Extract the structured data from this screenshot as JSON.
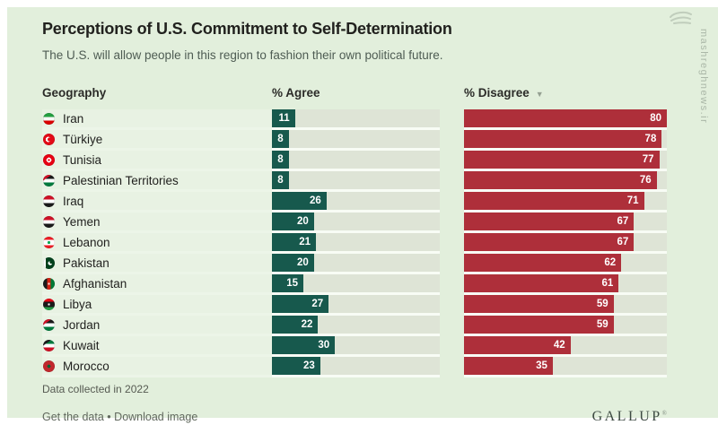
{
  "page": {
    "title": "Perceptions of U.S. Commitment to Self-Determination",
    "subtitle": "The U.S. will allow people in this region to fashion their own political future.",
    "background_color": "#e2efdc"
  },
  "table": {
    "headers": {
      "geography": "Geography",
      "agree": "% Agree",
      "disagree": "% Disagree"
    },
    "sort_icon_glyph": "▼",
    "sorted_by": "% Disagree descending",
    "rows": [
      {
        "country": "Iran",
        "flag": "iran",
        "agree": 11,
        "disagree": 80
      },
      {
        "country": "Türkiye",
        "flag": "turkiye",
        "agree": 8,
        "disagree": 78
      },
      {
        "country": "Tunisia",
        "flag": "tunisia",
        "agree": 8,
        "disagree": 77
      },
      {
        "country": "Palestinian Territories",
        "flag": "palestinian-territories",
        "agree": 8,
        "disagree": 76
      },
      {
        "country": "Iraq",
        "flag": "iraq",
        "agree": 26,
        "disagree": 71
      },
      {
        "country": "Yemen",
        "flag": "yemen",
        "agree": 20,
        "disagree": 67
      },
      {
        "country": "Lebanon",
        "flag": "lebanon",
        "agree": 21,
        "disagree": 67
      },
      {
        "country": "Pakistan",
        "flag": "pakistan",
        "agree": 20,
        "disagree": 62
      },
      {
        "country": "Afghanistan",
        "flag": "afghanistan",
        "agree": 15,
        "disagree": 61
      },
      {
        "country": "Libya",
        "flag": "libya",
        "agree": 27,
        "disagree": 59
      },
      {
        "country": "Jordan",
        "flag": "jordan",
        "agree": 22,
        "disagree": 59
      },
      {
        "country": "Kuwait",
        "flag": "kuwait",
        "agree": 30,
        "disagree": 42
      },
      {
        "country": "Morocco",
        "flag": "morocco",
        "agree": 23,
        "disagree": 35
      }
    ]
  },
  "footer": {
    "note": "Data collected in 2022",
    "links": [
      "Get the data",
      "Download image"
    ],
    "separator": "•",
    "brand": "GALLUP",
    "brand_mark": "®"
  },
  "watermark": {
    "text": "mashreghnews.ir"
  },
  "colors": {
    "agree_bar": "#17594d",
    "disagree_bar": "#ae2f3a",
    "bar_track": "#dee4d6",
    "background": "#e2efdc"
  },
  "chart_data": {
    "type": "bar",
    "orientation": "horizontal",
    "title": "Perceptions of U.S. Commitment to Self-Determination",
    "subtitle": "The U.S. will allow people in this region to fashion their own political future.",
    "categories": [
      "Iran",
      "Türkiye",
      "Tunisia",
      "Palestinian Territories",
      "Iraq",
      "Yemen",
      "Lebanon",
      "Pakistan",
      "Afghanistan",
      "Libya",
      "Jordan",
      "Kuwait",
      "Morocco"
    ],
    "series": [
      {
        "name": "% Agree",
        "color": "#17594d",
        "values": [
          11,
          8,
          8,
          8,
          26,
          20,
          21,
          20,
          15,
          27,
          22,
          30,
          23
        ]
      },
      {
        "name": "% Disagree",
        "color": "#ae2f3a",
        "values": [
          80,
          78,
          77,
          76,
          71,
          67,
          67,
          62,
          61,
          59,
          59,
          42,
          35
        ]
      }
    ],
    "xlim": [
      0,
      80
    ],
    "grid": false,
    "legend_position": "column-headers",
    "sorted_by": "% Disagree descending",
    "note": "Data collected in 2022",
    "source": "GALLUP"
  }
}
